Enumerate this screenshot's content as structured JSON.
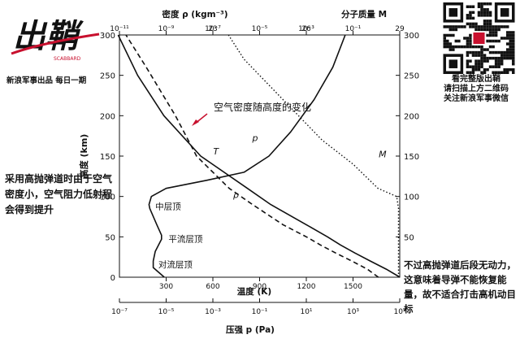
{
  "branding": {
    "logo_text": "出鞘",
    "logo_sub": "SCABBARD",
    "subtitle": "新浪军事出品 每日一期",
    "qr_lines": [
      "看完整版出鞘",
      "请扫描上方二维码",
      "关注新浪军事微信"
    ]
  },
  "notes": {
    "left": "采用高抛弹道时由于空气密度小，空气阻力低射程会得到提升",
    "right": "不过高抛弹道后段无动力，这意味着导弹不能恢复能量，故不适合打击高机动目标"
  },
  "chart_data": {
    "type": "line",
    "title": "空气密度随高度的变化",
    "ylabel": "高度 (km)",
    "ylim": [
      0,
      300
    ],
    "yticks": [
      "0",
      "50",
      "100",
      "150",
      "200",
      "250",
      "300"
    ],
    "right_yticks": [
      "50",
      "100",
      "150",
      "200",
      "250",
      "300"
    ],
    "x_axes": [
      {
        "id": "temperature",
        "label": "温度 (K)",
        "position": "bottom",
        "scale": "linear",
        "range": [
          0,
          1800
        ],
        "ticks": [
          "300",
          "600",
          "900",
          "1200",
          "1500"
        ],
        "tick_values": [
          300,
          600,
          900,
          1200,
          1500
        ]
      },
      {
        "id": "density",
        "label": "密度 ρ (kgm⁻³)",
        "position": "top",
        "scale": "log",
        "range": [
          1e-11,
          10
        ],
        "ticks": [
          "10⁻¹¹",
          "10⁻⁹",
          "10⁻⁷",
          "10⁻⁵",
          "10⁻³",
          "10⁻¹"
        ],
        "tick_values": [
          1e-11,
          1e-09,
          1e-07,
          1e-05,
          0.001,
          0.1
        ]
      },
      {
        "id": "molar_mass",
        "label": "分子质量 M",
        "position": "top",
        "scale": "linear",
        "range": [
          20,
          29
        ],
        "ticks": [
          "23",
          "26",
          "29"
        ],
        "tick_values": [
          23,
          26,
          29
        ]
      },
      {
        "id": "pressure",
        "label": "压强 p (Pa)",
        "position": "bottom2",
        "scale": "log",
        "range": [
          1e-07,
          100000.0
        ],
        "ticks": [
          "10⁻⁷",
          "10⁻⁵",
          "10⁻³",
          "10⁻¹",
          "10¹",
          "10³",
          "10⁵"
        ],
        "tick_values": [
          1e-07,
          1e-05,
          0.001,
          0.1,
          10,
          1000,
          100000
        ]
      }
    ],
    "series": [
      {
        "name": "T",
        "axis": "temperature",
        "style": "solid",
        "points": [
          [
            288,
            0
          ],
          [
            217,
            12
          ],
          [
            217,
            20
          ],
          [
            230,
            32
          ],
          [
            270,
            47
          ],
          [
            270,
            52
          ],
          [
            240,
            65
          ],
          [
            195,
            85
          ],
          [
            190,
            90
          ],
          [
            205,
            100
          ],
          [
            300,
            110
          ],
          [
            560,
            120
          ],
          [
            800,
            130
          ],
          [
            960,
            150
          ],
          [
            1100,
            180
          ],
          [
            1250,
            220
          ],
          [
            1370,
            260
          ],
          [
            1450,
            300
          ]
        ]
      },
      {
        "name": "ρ",
        "axis": "density",
        "style": "dashed",
        "points": [
          [
            1.22,
            0
          ],
          [
            0.41,
            10
          ],
          [
            0.089,
            20
          ],
          [
            0.018,
            30
          ],
          [
            0.004,
            40
          ],
          [
            0.001,
            50
          ],
          [
            0.0001,
            65
          ],
          [
            5e-06,
            90
          ],
          [
            5e-07,
            110
          ],
          [
            2e-08,
            150
          ],
          [
            2.5e-09,
            200
          ],
          [
            1.4e-10,
            260
          ],
          [
            1.9e-11,
            300
          ]
        ]
      },
      {
        "name": "p",
        "axis": "pressure",
        "style": "solid",
        "points": [
          [
            101325,
            0
          ],
          [
            26500,
            10
          ],
          [
            5500,
            20
          ],
          [
            1200,
            30
          ],
          [
            290,
            40
          ],
          [
            80,
            50
          ],
          [
            10,
            65
          ],
          [
            0.3,
            90
          ],
          [
            0.03,
            110
          ],
          [
            0.0003,
            150
          ],
          [
            8e-06,
            200
          ],
          [
            6e-07,
            250
          ],
          [
            8.8e-08,
            300
          ]
        ]
      },
      {
        "name": "M",
        "axis": "molar_mass",
        "style": "dotted",
        "points": [
          [
            28.96,
            0
          ],
          [
            28.96,
            85
          ],
          [
            28.9,
            100
          ],
          [
            28.3,
            110
          ],
          [
            27.5,
            140
          ],
          [
            26.5,
            170
          ],
          [
            25.5,
            210
          ],
          [
            24.5,
            250
          ],
          [
            24,
            270
          ],
          [
            23.5,
            300
          ]
        ]
      }
    ],
    "annotations": [
      {
        "text": "中层顶",
        "temp_k": 230,
        "alt_km": 88
      },
      {
        "text": "平流层顶",
        "temp_k": 315,
        "alt_km": 48
      },
      {
        "text": "对流层顶",
        "temp_k": 250,
        "alt_km": 16
      }
    ]
  }
}
